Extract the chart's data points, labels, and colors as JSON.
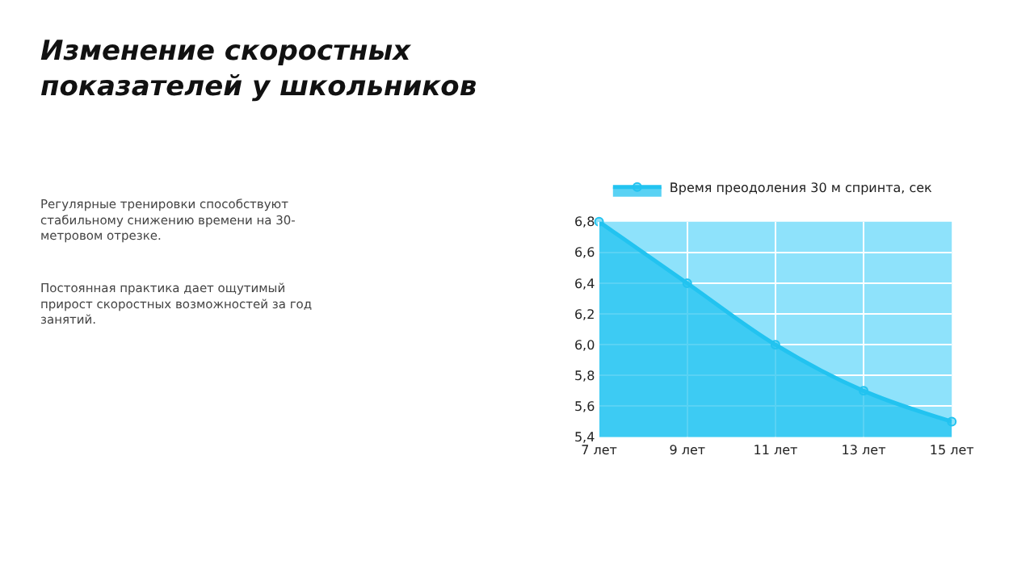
{
  "chart_data": {
    "type": "area",
    "title": "Изменение скоростных\nпоказателей у школьников",
    "annotations": [
      "Регулярные тренировки способствуют\nстабильному снижению времени на 30-\nметровом отрезке.",
      "Постоянная практика дает ощутимый\nприрост скоростных возможностей за год\nзанятий."
    ],
    "categories": [
      "7 лет",
      "9 лет",
      "11 лет",
      "13 лет",
      "15 лет"
    ],
    "series": [
      {
        "name": "Время преодоления 30 м спринта, сек",
        "color": "#22c3f0",
        "values": [
          6.8,
          6.4,
          6.0,
          5.7,
          5.5
        ]
      }
    ],
    "ylim": [
      5.4,
      6.8
    ],
    "yticks": [
      {
        "value": 5.4,
        "label": "5,4"
      },
      {
        "value": 5.6,
        "label": "5,6"
      },
      {
        "value": 5.8,
        "label": "5,8"
      },
      {
        "value": 6.0,
        "label": "6,0"
      },
      {
        "value": 6.2,
        "label": "6,2"
      },
      {
        "value": 6.4,
        "label": "6,4"
      },
      {
        "value": 6.6,
        "label": "6,6"
      },
      {
        "value": 6.8,
        "label": "6,8"
      }
    ],
    "grid": true,
    "legend": "top",
    "marker": "circle",
    "line_style": "solid"
  }
}
